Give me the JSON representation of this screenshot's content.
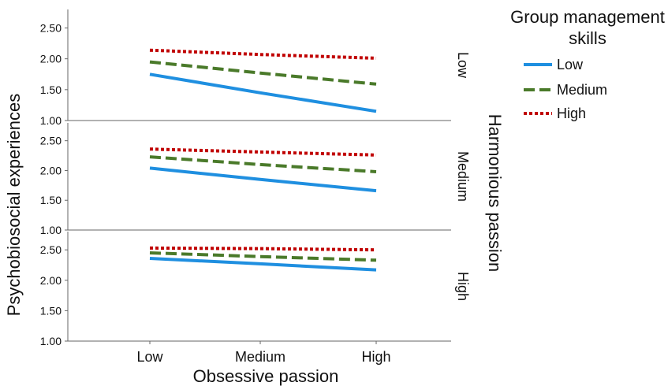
{
  "chart_data": {
    "type": "line",
    "xlabel": "Obsessive passion",
    "ylabel": "Psychobiosocial experiences",
    "facet_title": "Harmonious passion",
    "categories": [
      "Low",
      "Medium",
      "High"
    ],
    "y_ticks": [
      "1.00",
      "1.50",
      "2.00",
      "2.50"
    ],
    "legend_title_lines": [
      "Group management",
      "skills"
    ],
    "legend_position": "top-right",
    "grid": false,
    "panels": [
      {
        "label": "Low",
        "ylim": [
          1.0,
          2.8
        ],
        "series": [
          {
            "name": "Low",
            "values": [
              1.75,
              1.45,
              1.15
            ]
          },
          {
            "name": "Medium",
            "values": [
              1.95,
              1.77,
              1.59
            ]
          },
          {
            "name": "High",
            "values": [
              2.14,
              2.07,
              2.01
            ]
          }
        ]
      },
      {
        "label": "Medium",
        "ylim": [
          1.0,
          2.8
        ],
        "series": [
          {
            "name": "Low",
            "values": [
              2.04,
              1.85,
              1.66
            ]
          },
          {
            "name": "Medium",
            "values": [
              2.23,
              2.1,
              1.98
            ]
          },
          {
            "name": "High",
            "values": [
              2.36,
              2.31,
              2.26
            ]
          }
        ]
      },
      {
        "label": "High",
        "ylim": [
          1.0,
          2.8
        ],
        "series": [
          {
            "name": "Low",
            "values": [
              2.36,
              2.27,
              2.17
            ]
          },
          {
            "name": "Medium",
            "values": [
              2.45,
              2.39,
              2.33
            ]
          },
          {
            "name": "High",
            "values": [
              2.53,
              2.52,
              2.5
            ]
          }
        ]
      }
    ],
    "series_styles": [
      {
        "name": "Low",
        "color": "#1f8fe0",
        "dash": "solid"
      },
      {
        "name": "Medium",
        "color": "#4a7a2a",
        "dash": "dashed"
      },
      {
        "name": "High",
        "color": "#c00000",
        "dash": "dotted"
      }
    ]
  }
}
